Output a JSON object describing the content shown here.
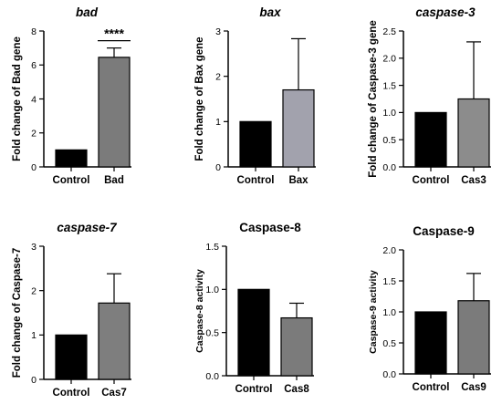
{
  "chart_data": [
    {
      "type": "bar",
      "title": "bad",
      "title_italic": true,
      "ylabel": "Fold change of Bad gene",
      "categories": [
        "Control",
        "Bad"
      ],
      "values": [
        1.0,
        6.45
      ],
      "error_upper": [
        0,
        0.55
      ],
      "ylim": [
        0,
        8
      ],
      "yticks": [
        0,
        2,
        4,
        6,
        8
      ],
      "bar_colors": [
        "#000000",
        "#7b7b7b"
      ],
      "significance": "****"
    },
    {
      "type": "bar",
      "title": "bax",
      "title_italic": true,
      "ylabel": "Fold change of Bax gene",
      "categories": [
        "Control",
        "Bax"
      ],
      "values": [
        1.0,
        1.7
      ],
      "error_upper": [
        0,
        1.13
      ],
      "ylim": [
        0,
        3
      ],
      "yticks": [
        0,
        1,
        2,
        3
      ],
      "bar_colors": [
        "#000000",
        "#a2a2ad"
      ]
    },
    {
      "type": "bar",
      "title": "caspase-3",
      "title_italic": true,
      "ylabel": "Fold change of Caspase-3 gene",
      "categories": [
        "Control",
        "Cas3"
      ],
      "values": [
        1.0,
        1.25
      ],
      "error_upper": [
        0,
        1.05
      ],
      "ylim": [
        0,
        2.5
      ],
      "yticks": [
        0.0,
        0.5,
        1.0,
        1.5,
        2.0,
        2.5
      ],
      "bar_colors": [
        "#000000",
        "#8c8c8c"
      ]
    },
    {
      "type": "bar",
      "title": "caspase-7",
      "title_italic": true,
      "ylabel": "Fold change of Caspase-7",
      "categories": [
        "Control",
        "Cas7"
      ],
      "values": [
        1.0,
        1.72
      ],
      "error_upper": [
        0,
        0.66
      ],
      "ylim": [
        0,
        3
      ],
      "yticks": [
        0,
        1,
        2,
        3
      ],
      "bar_colors": [
        "#000000",
        "#7e7e7e"
      ]
    },
    {
      "type": "bar",
      "title": "Caspase-8",
      "title_italic": false,
      "ylabel": "Caspase-8 activity",
      "categories": [
        "Control",
        "Cas8"
      ],
      "values": [
        1.0,
        0.67
      ],
      "error_upper": [
        0,
        0.17
      ],
      "ylim": [
        0,
        1.5
      ],
      "yticks": [
        0.0,
        0.5,
        1.0,
        1.5
      ],
      "bar_colors": [
        "#000000",
        "#7b7b7b"
      ]
    },
    {
      "type": "bar",
      "title": "Caspase-9",
      "title_italic": false,
      "ylabel": "Caspase-9 activity",
      "categories": [
        "Control",
        "Cas9"
      ],
      "values": [
        1.0,
        1.18
      ],
      "error_upper": [
        0,
        0.44
      ],
      "ylim": [
        0,
        2.0
      ],
      "yticks": [
        0.0,
        0.5,
        1.0,
        1.5,
        2.0
      ],
      "bar_colors": [
        "#000000",
        "#7b7b7b"
      ]
    }
  ]
}
